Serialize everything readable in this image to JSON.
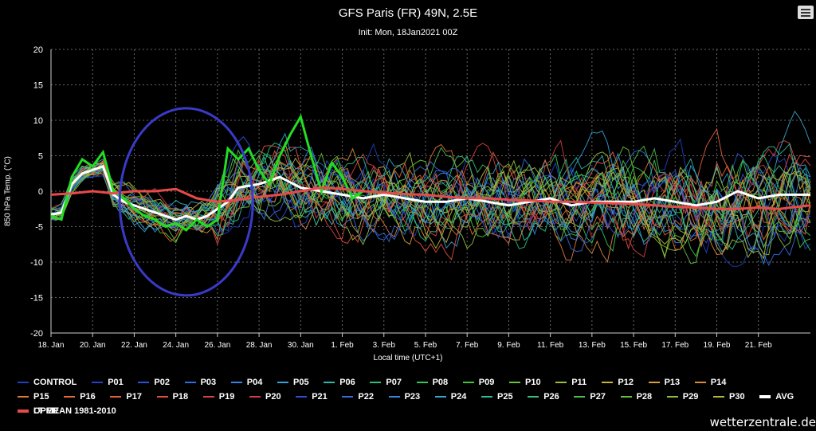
{
  "header": {
    "menu_icon": "hamburger-menu-icon"
  },
  "watermark": "wetterzentrale.de",
  "chart_data": {
    "type": "line",
    "title": "GFS Paris (FR) 49N, 2.5E",
    "subtitle": "Init: Mon, 18Jan2021 00Z",
    "xlabel": "Local time (UTC+1)",
    "ylabel": "850 hPa Temp. (°C)",
    "ylim": [
      -20,
      20
    ],
    "yticks": [
      20,
      15,
      10,
      5,
      0,
      -5,
      -10,
      -15,
      -20
    ],
    "xlim_days": [
      0,
      36.5
    ],
    "xticks": [
      {
        "day": 0,
        "label": "18. Jan"
      },
      {
        "day": 2,
        "label": "20. Jan"
      },
      {
        "day": 4,
        "label": "22. Jan"
      },
      {
        "day": 6,
        "label": "24. Jan"
      },
      {
        "day": 8,
        "label": "26. Jan"
      },
      {
        "day": 10,
        "label": "28. Jan"
      },
      {
        "day": 12,
        "label": "30. Jan"
      },
      {
        "day": 14,
        "label": "1. Feb"
      },
      {
        "day": 16,
        "label": "3. Feb"
      },
      {
        "day": 18,
        "label": "5. Feb"
      },
      {
        "day": 20,
        "label": "7. Feb"
      },
      {
        "day": 22,
        "label": "9. Feb"
      },
      {
        "day": 24,
        "label": "11. Feb"
      },
      {
        "day": 26,
        "label": "13. Feb"
      },
      {
        "day": 28,
        "label": "15. Feb"
      },
      {
        "day": 30,
        "label": "17. Feb"
      },
      {
        "day": 32,
        "label": "19. Feb"
      },
      {
        "day": 34,
        "label": "21. Feb"
      }
    ],
    "grid": true,
    "legend_position": "bottom",
    "annotation": {
      "type": "ellipse",
      "color": "#3a3ac8",
      "center": [
        6.5,
        -1.5
      ],
      "radii_days_deg": [
        3.2,
        13.2
      ]
    },
    "series": [
      {
        "name": "CONTROL",
        "color": "#1f3fbf"
      },
      {
        "name": "P01",
        "color": "#2341c9"
      },
      {
        "name": "P02",
        "color": "#2a53d8"
      },
      {
        "name": "P03",
        "color": "#2f6ce0"
      },
      {
        "name": "P04",
        "color": "#3385e5"
      },
      {
        "name": "P05",
        "color": "#35a0dc"
      },
      {
        "name": "P06",
        "color": "#2fb8a8"
      },
      {
        "name": "P07",
        "color": "#2cbf7d"
      },
      {
        "name": "P08",
        "color": "#34c45a"
      },
      {
        "name": "P09",
        "color": "#43c43b"
      },
      {
        "name": "P10",
        "color": "#6ac43a"
      },
      {
        "name": "P11",
        "color": "#98c03a"
      },
      {
        "name": "P12",
        "color": "#c0b63a"
      },
      {
        "name": "P13",
        "color": "#d6a03a"
      },
      {
        "name": "P14",
        "color": "#dc8a3a"
      },
      {
        "name": "P15",
        "color": "#e0783a"
      },
      {
        "name": "P16",
        "color": "#e36a3a"
      },
      {
        "name": "P17",
        "color": "#e3603c"
      },
      {
        "name": "P18",
        "color": "#e0503e"
      },
      {
        "name": "P19",
        "color": "#d94440"
      },
      {
        "name": "P20",
        "color": "#cf3e44"
      },
      {
        "name": "P21",
        "color": "#2e4fd0"
      },
      {
        "name": "P22",
        "color": "#356ad8"
      },
      {
        "name": "P23",
        "color": "#3b86d9"
      },
      {
        "name": "P24",
        "color": "#37a3c8"
      },
      {
        "name": "P25",
        "color": "#33b89a"
      },
      {
        "name": "P26",
        "color": "#38c072"
      },
      {
        "name": "P27",
        "color": "#48c14c"
      },
      {
        "name": "P28",
        "color": "#62c23e"
      },
      {
        "name": "P29",
        "color": "#8ec03c"
      },
      {
        "name": "P30",
        "color": "#b5b640"
      },
      {
        "name": "AVG",
        "color": "#ffffff",
        "bold": true,
        "x": [
          0,
          0.5,
          1,
          1.5,
          2,
          2.5,
          3,
          3.5,
          4,
          5,
          5.5,
          6,
          6.5,
          7,
          7.5,
          8,
          8.5,
          9,
          10,
          10.5,
          11,
          12,
          13,
          14,
          15,
          16,
          17,
          18,
          19,
          20,
          21,
          22,
          23,
          24,
          25,
          26,
          27,
          28,
          29,
          30,
          31,
          32,
          33,
          34,
          35,
          36.5
        ],
        "y": [
          -3.3,
          -3,
          1,
          2.5,
          3,
          3.5,
          -0.5,
          -1.5,
          -2,
          -3,
          -3.5,
          -4,
          -3.5,
          -4,
          -3.5,
          -2.5,
          -1.5,
          0.5,
          1,
          1.5,
          2,
          0.5,
          0,
          -0.5,
          -1,
          -0.5,
          -1,
          -1.5,
          -1.5,
          -1,
          -1.5,
          -2,
          -1.5,
          -1,
          -2,
          -1.5,
          -1.5,
          -1.5,
          -1,
          -1.5,
          -2,
          -1.5,
          0,
          -1,
          -0.5,
          -0.5
        ]
      },
      {
        "name": "OPER",
        "color": "#22dd22",
        "bold": true,
        "x": [
          0,
          0.5,
          1,
          1.5,
          2,
          2.5,
          3,
          3.5,
          4,
          4.5,
          5,
          5.5,
          6,
          6.5,
          7,
          7.5,
          8,
          8.5,
          9,
          9.5,
          10,
          10.5,
          11,
          11.5,
          12,
          12.5,
          13,
          13.5,
          14,
          14.5,
          15
        ],
        "y": [
          -3.5,
          -4,
          2,
          4.5,
          3.5,
          5.5,
          0,
          -1,
          -2.5,
          -3.5,
          -4,
          -5,
          -4.5,
          -5.5,
          -4,
          -5,
          -4,
          6,
          4.5,
          6,
          3,
          1,
          5,
          8,
          10.5,
          5,
          0,
          4,
          2,
          -1,
          0
        ]
      },
      {
        "name": "LT MEAN 1981-2010",
        "color": "#e84a4a",
        "bold": true,
        "x": [
          0,
          1,
          2,
          3,
          4,
          5,
          6,
          7,
          8,
          9,
          10,
          11,
          12,
          13,
          14,
          15,
          16,
          17,
          18,
          19,
          20,
          21,
          22,
          23,
          24,
          25,
          26,
          27,
          28,
          29,
          30,
          31,
          32,
          33,
          34,
          35,
          36.5
        ],
        "y": [
          -0.5,
          -0.3,
          0,
          -0.3,
          0,
          0,
          0.3,
          -1,
          -1.5,
          -1.2,
          -0.8,
          -0.5,
          0,
          0.5,
          0.3,
          0,
          -0.2,
          -0.4,
          -0.5,
          -0.8,
          -1,
          -1,
          -1.2,
          -1.3,
          -1.5,
          -1.5,
          -1.6,
          -1.7,
          -1.8,
          -2,
          -2.2,
          -2.3,
          -2.5,
          -2.5,
          -2.3,
          -2.5,
          -2
        ]
      }
    ]
  }
}
